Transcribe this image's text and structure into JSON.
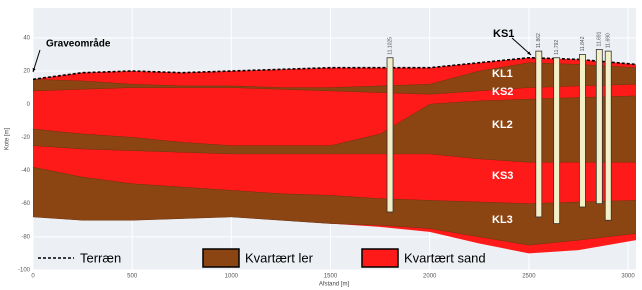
{
  "chart_data": {
    "type": "cross-section",
    "xlabel": "Afstand [m]",
    "ylabel": "Kote [m]",
    "xlim": [
      0,
      3040
    ],
    "ylim": [
      -100,
      58
    ],
    "xticks": [
      0,
      500,
      1000,
      1500,
      2000,
      2500,
      3000
    ],
    "yticks": [
      -100,
      -80,
      -60,
      -40,
      -20,
      0,
      20,
      40
    ],
    "grid": true,
    "x": [
      0,
      250,
      500,
      750,
      1000,
      1250,
      1500,
      1750,
      2000,
      2250,
      2500,
      2750,
      3040
    ],
    "series": [
      {
        "name": "Terræn",
        "kind": "line",
        "color": "#000000",
        "values": [
          15,
          19,
          20,
          19,
          20,
          21,
          22,
          22,
          22,
          25,
          28,
          27,
          24
        ]
      },
      {
        "name": "Kvartært ler",
        "kind": "bands",
        "color": "#8b4513",
        "bands": [
          {
            "top": [
              15,
              14,
              12,
              11,
              11,
              10,
              10,
              11,
              12,
              20,
              25,
              24,
              22
            ],
            "bottom": [
              8,
              9,
              10,
              10,
              10,
              9,
              8,
              7,
              6,
              8,
              10,
              11,
              12
            ]
          },
          {
            "top": [
              -15,
              -18,
              -20,
              -23,
              -25,
              -25,
              -25,
              -18,
              0,
              2,
              3,
              4,
              5
            ],
            "bottom": [
              -25,
              -27,
              -28,
              -29,
              -30,
              -30,
              -30,
              -30,
              -30,
              -33,
              -35,
              -35,
              -35
            ]
          },
          {
            "top": [
              -38,
              -44,
              -48,
              -50,
              -52,
              -54,
              -55,
              -57,
              -58,
              -59,
              -60,
              -59,
              -58
            ],
            "bottom": [
              -68,
              -70,
              -70,
              -69,
              -68,
              -70,
              -72,
              -73,
              -75,
              -80,
              -85,
              -82,
              -78
            ]
          }
        ]
      },
      {
        "name": "Kvartært sand",
        "kind": "fill",
        "color": "#ff1a1a",
        "bottom": [
          -68,
          -70,
          -70,
          -69,
          -68,
          -70,
          -72,
          -74,
          -77,
          -84,
          -90,
          -88,
          -82
        ]
      }
    ],
    "boreholes": [
      {
        "label": "11.1025",
        "x": 1800,
        "top": 28,
        "bottom": -65
      },
      {
        "label": "11.862",
        "x": 2550,
        "top": 32,
        "bottom": -68
      },
      {
        "label": "11.792",
        "x": 2640,
        "top": 28,
        "bottom": -72
      },
      {
        "label": "11.842",
        "x": 2770,
        "top": 30,
        "bottom": -62
      },
      {
        "label": "11.691",
        "x": 2855,
        "top": 33,
        "bottom": -60
      },
      {
        "label": "11.690",
        "x": 2900,
        "top": 32,
        "bottom": -70
      }
    ],
    "borehole_color": "#f3efc8",
    "annotations": [
      "Graveområde",
      "KS1",
      "KL1",
      "KS2",
      "KL2",
      "KS3",
      "KL3"
    ]
  }
}
